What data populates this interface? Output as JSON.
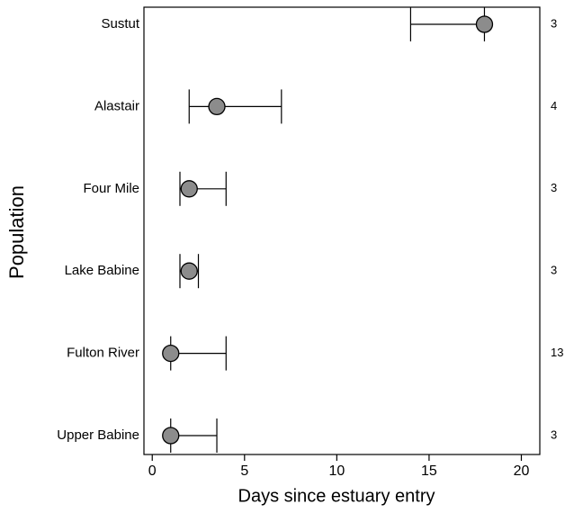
{
  "chart_data": {
    "type": "dotrange",
    "xlabel": "Days since estuary entry",
    "ylabel": "Population",
    "categories": [
      "Sustut",
      "Alastair",
      "Four Mile",
      "Lake Babine",
      "Fulton River",
      "Upper Babine"
    ],
    "values": [
      18,
      3.5,
      2,
      2,
      1,
      1
    ],
    "low": [
      14,
      2,
      1.5,
      1.5,
      1,
      1
    ],
    "high": [
      18,
      7,
      4,
      2.5,
      4,
      3.5
    ],
    "sample_sizes": [
      3,
      4,
      3,
      3,
      13,
      3
    ],
    "color": "#8c8c8c",
    "xlim": [
      -0.45,
      21
    ],
    "xticks": [
      0,
      5,
      10,
      15,
      20
    ]
  }
}
